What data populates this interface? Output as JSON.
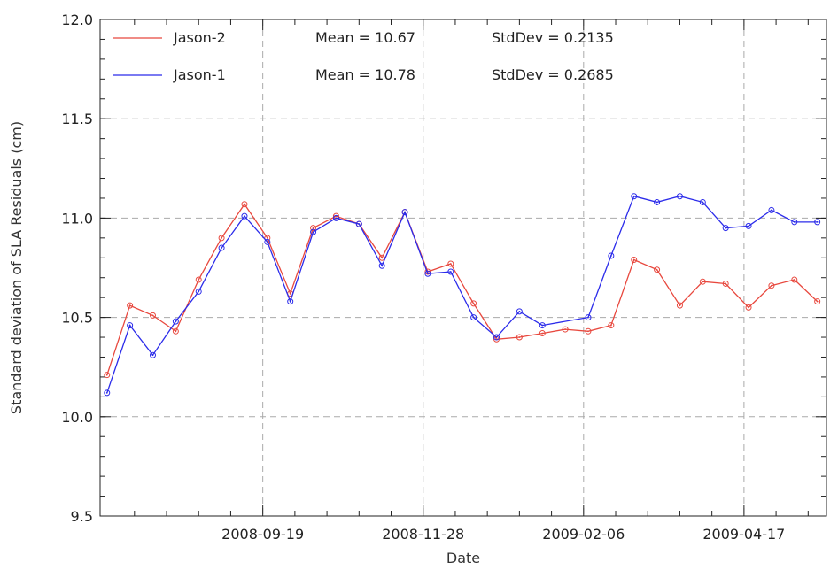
{
  "chart_data": {
    "type": "line",
    "xlabel": "Date",
    "ylabel": "Standard deviation of SLA Residuals (cm)",
    "xlim": [
      "2008-07-10",
      "2009-05-23"
    ],
    "ylim": [
      9.5,
      12.0
    ],
    "grid": true,
    "legend_position": "top-left",
    "x_ticks": [
      "2008-09-19",
      "2008-11-28",
      "2009-02-06",
      "2009-04-17"
    ],
    "y_ticks": [
      "9.5",
      "10.0",
      "10.5",
      "11.0",
      "11.5",
      "12.0"
    ],
    "series": [
      {
        "name": "Jason-2",
        "color": "#e8483e",
        "mean_text": "Mean = 10.67",
        "stddev_text": "StdDev = 0.2135",
        "x": [
          "2008-07-13",
          "2008-07-23",
          "2008-08-02",
          "2008-08-12",
          "2008-08-22",
          "2008-09-01",
          "2008-09-11",
          "2008-09-21",
          "2008-10-01",
          "2008-10-11",
          "2008-10-21",
          "2008-10-31",
          "2008-11-10",
          "2008-11-20",
          "2008-11-30",
          "2008-12-10",
          "2008-12-20",
          "2008-12-30",
          "2009-01-09",
          "2009-01-19",
          "2009-01-29",
          "2009-02-08",
          "2009-02-18",
          "2009-02-28",
          "2009-03-10",
          "2009-03-20",
          "2009-03-30",
          "2009-04-09",
          "2009-04-19",
          "2009-04-29",
          "2009-05-09",
          "2009-05-19"
        ],
        "values": [
          10.21,
          10.56,
          10.51,
          10.43,
          10.69,
          10.9,
          11.07,
          10.9,
          10.62,
          10.95,
          11.01,
          10.97,
          10.8,
          11.03,
          10.73,
          10.77,
          10.57,
          10.39,
          10.4,
          10.42,
          10.44,
          10.43,
          10.46,
          10.79,
          10.74,
          10.56,
          10.68,
          10.67,
          10.55,
          10.66,
          10.69,
          10.58
        ]
      },
      {
        "name": "Jason-1",
        "color": "#2b2bea",
        "mean_text": "Mean = 10.78",
        "stddev_text": "StdDev = 0.2685",
        "x": [
          "2008-07-13",
          "2008-07-23",
          "2008-08-02",
          "2008-08-12",
          "2008-08-22",
          "2008-09-01",
          "2008-09-11",
          "2008-09-21",
          "2008-10-01",
          "2008-10-11",
          "2008-10-21",
          "2008-10-31",
          "2008-11-10",
          "2008-11-20",
          "2008-11-30",
          "2008-12-10",
          "2008-12-20",
          "2008-12-30",
          "2009-01-09",
          "2009-01-19",
          "2009-02-08",
          "2009-02-18",
          "2009-02-28",
          "2009-03-10",
          "2009-03-20",
          "2009-03-30",
          "2009-04-09",
          "2009-04-19",
          "2009-04-29",
          "2009-05-09",
          "2009-05-19"
        ],
        "values": [
          10.12,
          10.46,
          10.31,
          10.48,
          10.63,
          10.85,
          11.01,
          10.88,
          10.58,
          10.93,
          11.0,
          10.97,
          10.76,
          11.03,
          10.72,
          10.73,
          10.5,
          10.4,
          10.53,
          10.46,
          10.5,
          10.81,
          11.11,
          11.08,
          11.11,
          11.08,
          10.95,
          10.96,
          11.04,
          10.98,
          10.98
        ]
      }
    ]
  }
}
